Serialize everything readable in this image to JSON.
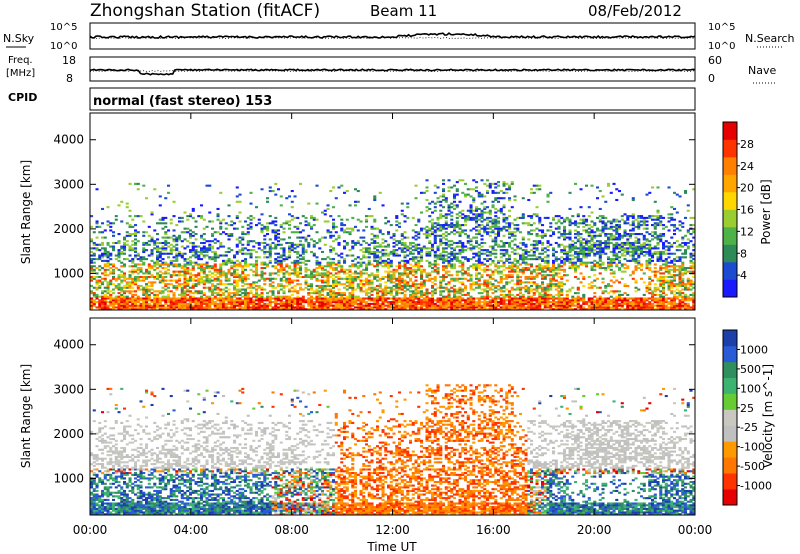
{
  "header": {
    "title": "Zhongshan Station (fitACF)",
    "beam": "Beam 11",
    "date": "08/Feb/2012"
  },
  "status_panels": {
    "nsky_label": "N.Sky",
    "nsearch_label": "N.Search",
    "freq_label_1": "Freq.",
    "freq_label_2": "[MHz]",
    "nave_label": "Nave",
    "cpid_label": "CPID",
    "cpid_value": "normal (fast stereo) 153",
    "nsky_ticks": [
      "10^5",
      "10^0"
    ],
    "nsearch_ticks": [
      "10^5",
      "10^0"
    ],
    "freq_ticks": [
      "18",
      "8"
    ],
    "nave_ticks": [
      "60",
      "0"
    ]
  },
  "chart_data": [
    {
      "type": "heatmap",
      "name": "power",
      "ylabel": "Slant Range [km]",
      "y_ticks": [
        1000,
        2000,
        3000,
        4000
      ],
      "ylim": [
        180,
        4600
      ],
      "colorbar_label": "Power [dB]",
      "colorbar_ticks": [
        "4",
        "8",
        "12",
        "16",
        "20",
        "24",
        "28"
      ],
      "colorbar_colors": [
        "#1a1aff",
        "#1a4bd0",
        "#2e8b57",
        "#4fb248",
        "#9acd32",
        "#ffd700",
        "#ffa500",
        "#ff7f00",
        "#ff3300",
        "#e60000"
      ]
    },
    {
      "type": "heatmap",
      "name": "velocity",
      "ylabel": "Slant Range [km]",
      "y_ticks": [
        1000,
        2000,
        3000,
        4000
      ],
      "ylim": [
        180,
        4600
      ],
      "colorbar_label": "Velocity [m s^-1]",
      "colorbar_ticks": [
        "1000",
        "500",
        "100",
        "25",
        "-25",
        "-100",
        "-500",
        "-1000"
      ],
      "colorbar_colors": [
        "#1c3faa",
        "#2a5bd6",
        "#2f8f5f",
        "#3cb371",
        "#66cc33",
        "#c8c8c0",
        "#c0c0c0",
        "#ff9900",
        "#ff7700",
        "#ff3300",
        "#e60000"
      ]
    }
  ],
  "x_axis": {
    "label": "Time UT",
    "ticks": [
      "00:00",
      "04:00",
      "08:00",
      "12:00",
      "16:00",
      "20:00",
      "00:00"
    ]
  }
}
